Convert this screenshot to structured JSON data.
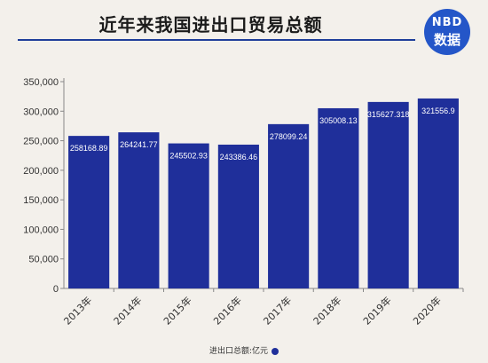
{
  "header": {
    "title": "近年来我国进出口贸易总额",
    "logo_top": "NBD",
    "logo_bottom": "数据"
  },
  "colors": {
    "bar": "#1f2f9a",
    "accent": "#2456c8",
    "background": "#f3f0eb"
  },
  "chart_data": {
    "type": "bar",
    "title": "近年来我国进出口贸易总额",
    "xlabel": "",
    "ylabel": "",
    "categories": [
      "2013年",
      "2014年",
      "2015年",
      "2016年",
      "2017年",
      "2018年",
      "2019年",
      "2020年"
    ],
    "series": [
      {
        "name": "进出口总额:亿元",
        "values": [
          258168.89,
          264241.77,
          245502.93,
          243386.46,
          278099.24,
          305008.13,
          315627.318,
          321556.9
        ]
      }
    ],
    "value_labels": [
      "258168.89",
      "264241.77",
      "245502.93",
      "243386.46",
      "278099.24",
      "305008.13",
      "315627.318",
      "321556.9"
    ],
    "ylim": [
      0,
      350000
    ],
    "yticks": [
      0,
      50000,
      100000,
      150000,
      200000,
      250000,
      300000,
      350000
    ],
    "ytick_labels": [
      "0",
      "50,000",
      "100,000",
      "150,000",
      "200,000",
      "250,000",
      "300,000",
      "350,000"
    ],
    "grid": false,
    "legend_position": "bottom"
  }
}
